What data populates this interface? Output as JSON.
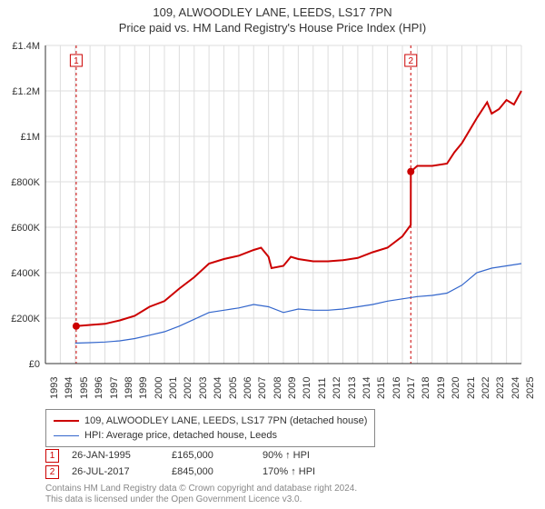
{
  "title_line1": "109, ALWOODLEY LANE, LEEDS, LS17 7PN",
  "title_line2": "Price paid vs. HM Land Registry's House Price Index (HPI)",
  "chart": {
    "type": "line",
    "background_color": "#ffffff",
    "grid_color": "#dddddd",
    "axis_color": "#333333",
    "font_size_axis": 11,
    "x": {
      "min": 1993,
      "max": 2025,
      "ticks": [
        1993,
        1994,
        1995,
        1996,
        1997,
        1998,
        1999,
        2000,
        2001,
        2002,
        2003,
        2004,
        2005,
        2006,
        2007,
        2008,
        2009,
        2010,
        2011,
        2012,
        2013,
        2014,
        2015,
        2016,
        2017,
        2018,
        2019,
        2020,
        2021,
        2022,
        2023,
        2024,
        2025
      ]
    },
    "y": {
      "min": 0,
      "max": 1400000,
      "ticks": [
        0,
        200000,
        400000,
        600000,
        800000,
        1000000,
        1200000,
        1400000
      ],
      "tick_labels": [
        "£0",
        "£200K",
        "£400K",
        "£600K",
        "£800K",
        "£1M",
        "£1.2M",
        "£1.4M"
      ]
    },
    "series": [
      {
        "name": "property",
        "legend": "109, ALWOODLEY LANE, LEEDS, LS17 7PN (detached house)",
        "color": "#cc0000",
        "width": 2,
        "xs": [
          1995.07,
          1996,
          1997,
          1998,
          1999,
          2000,
          2001,
          2002,
          2003,
          2004,
          2005,
          2006,
          2007,
          2007.5,
          2008,
          2008.2,
          2009,
          2009.5,
          2010,
          2011,
          2012,
          2013,
          2014,
          2015,
          2016,
          2017,
          2017.56,
          2017.57,
          2018,
          2019,
          2020,
          2020.5,
          2021,
          2022,
          2022.7,
          2023,
          2023.5,
          2024,
          2024.5,
          2025
        ],
        "ys": [
          165000,
          170000,
          175000,
          190000,
          210000,
          250000,
          275000,
          330000,
          380000,
          440000,
          460000,
          475000,
          500000,
          510000,
          470000,
          420000,
          430000,
          470000,
          460000,
          450000,
          450000,
          455000,
          465000,
          490000,
          510000,
          560000,
          610000,
          845000,
          870000,
          870000,
          880000,
          930000,
          970000,
          1080000,
          1150000,
          1100000,
          1120000,
          1160000,
          1140000,
          1200000
        ]
      },
      {
        "name": "hpi",
        "legend": "HPI: Average price, detached house, Leeds",
        "color": "#3366cc",
        "width": 1.2,
        "xs": [
          1995,
          1996,
          1997,
          1998,
          1999,
          2000,
          2001,
          2002,
          2003,
          2004,
          2005,
          2006,
          2007,
          2008,
          2009,
          2010,
          2011,
          2012,
          2013,
          2014,
          2015,
          2016,
          2017,
          2018,
          2019,
          2020,
          2021,
          2022,
          2023,
          2024,
          2025
        ],
        "ys": [
          90000,
          92000,
          95000,
          100000,
          110000,
          125000,
          140000,
          165000,
          195000,
          225000,
          235000,
          245000,
          260000,
          250000,
          225000,
          240000,
          235000,
          235000,
          240000,
          250000,
          260000,
          275000,
          285000,
          295000,
          300000,
          310000,
          345000,
          400000,
          420000,
          430000,
          440000
        ]
      }
    ],
    "sale_markers": [
      {
        "id": "1",
        "x": 1995.07,
        "y": 165000,
        "color": "#cc0000",
        "date": "26-JAN-1995",
        "price": "£165,000",
        "pct": "90% ↑ HPI"
      },
      {
        "id": "2",
        "x": 2017.565,
        "y": 845000,
        "color": "#cc0000",
        "date": "26-JUL-2017",
        "price": "£845,000",
        "pct": "170% ↑ HPI"
      }
    ],
    "marker_point_radius": 4,
    "marker_vline_color": "#cc0000",
    "marker_vline_dash": "3,3",
    "marker_box_top_offset": 10,
    "marker_box_size": 13,
    "marker_box_fontsize": 10
  },
  "footer_line1": "Contains HM Land Registry data © Crown copyright and database right 2024.",
  "footer_line2": "This data is licensed under the Open Government Licence v3.0."
}
